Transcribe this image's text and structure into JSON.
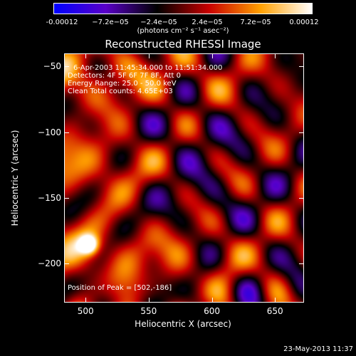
{
  "colorbar": {
    "ticks": [
      "-0.00012",
      "−7.2e−05",
      "−2.4e−05",
      "2.4e−05",
      "7.2e−05",
      "0.00012"
    ],
    "units": "(photons cm⁻² s⁻¹ asec⁻²)",
    "colors": [
      "#0000ff",
      "#5a00c8",
      "#000000",
      "#c80000",
      "#ffa000",
      "#ffffff"
    ]
  },
  "chart_data": {
    "type": "heatmap",
    "title": "Reconstructed RHESSI Image",
    "xlabel": "Heliocentric X (arcsec)",
    "ylabel": "Heliocentric Y (arcsec)",
    "xlim": [
      483,
      673
    ],
    "ylim": [
      -230,
      -40
    ],
    "xticks": [
      500,
      550,
      600,
      650
    ],
    "yticks": [
      -50,
      -100,
      -150,
      -200
    ],
    "zlim": [
      -0.00012,
      0.00012
    ],
    "annotations": [
      "6-Apr-2003 11:45:34.000 to 11:51:34.000",
      "Detectors: 4F 5F 6F 7F 8F, Att 0",
      "Energy Range: 25.0 - 50.0 keV",
      "Clean   Total counts: 4.65E+03"
    ],
    "peak_label": "Position of Peak = [502,-186]",
    "peak": [
      502,
      -186
    ]
  },
  "timestamp": "23-May-2013 11:37"
}
